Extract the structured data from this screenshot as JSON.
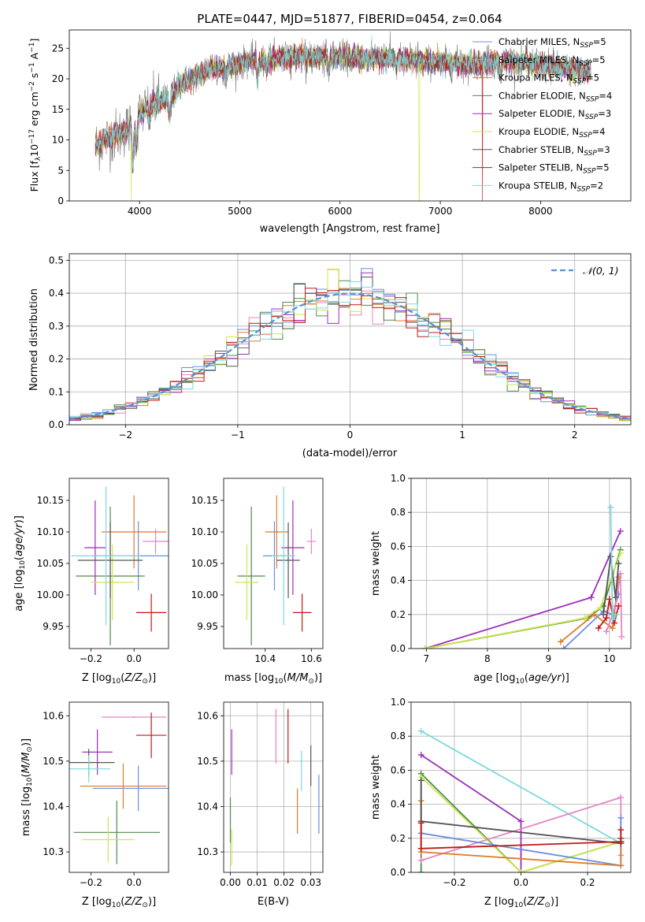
{
  "figure_title": "PLATE=0447, MJD=51877, FIBERID=0454, z=0.064",
  "colors": {
    "Chabrier MILES": "#6b8ee0",
    "Salpeter MILES": "#e685c0",
    "Kroupa MILES": "#e07b2a",
    "Chabrier ELODIE": "#4d8a4d",
    "Salpeter ELODIE": "#9b2fb8",
    "Kroupa ELODIE": "#cce84a",
    "Chabrier STELIB": "#555555",
    "Salpeter STELIB": "#c01818",
    "Kroupa STELIB": "#7fd8dd",
    "gaussian": "#5b8fd8"
  },
  "chart_data": [
    {
      "id": "spectrum",
      "type": "line",
      "xlabel": "wavelength [Angstrom, rest frame]",
      "ylabel": "Flux [f_λ 10^-17 erg cm^-2 s^-1 A^-1]",
      "xlim": [
        3300,
        8900
      ],
      "ylim": [
        0,
        28
      ],
      "xticks": [
        4000,
        5000,
        6000,
        7000,
        8000
      ],
      "yticks": [
        0,
        5,
        10,
        15,
        20,
        25
      ],
      "grid": false,
      "legend": {
        "placement": "right",
        "entries": [
          {
            "model": "Chabrier MILES",
            "label": "Chabrier MILES, N",
            "nssp": "5"
          },
          {
            "model": "Salpeter MILES",
            "label": "Salpeter MILES, N",
            "nssp": "5"
          },
          {
            "model": "Kroupa MILES",
            "label": "Kroupa MILES, N",
            "nssp": "5"
          },
          {
            "model": "Chabrier ELODIE",
            "label": "Chabrier ELODIE, N",
            "nssp": "4"
          },
          {
            "model": "Salpeter ELODIE",
            "label": "Salpeter ELODIE, N",
            "nssp": "3"
          },
          {
            "model": "Kroupa ELODIE",
            "label": "Kroupa ELODIE, N",
            "nssp": "4"
          },
          {
            "model": "Chabrier STELIB",
            "label": "Chabrier STELIB, N",
            "nssp": "3"
          },
          {
            "model": "Salpeter STELIB",
            "label": "Salpeter STELIB, N",
            "nssp": "5"
          },
          {
            "model": "Kroupa STELIB",
            "label": "Kroupa STELIB, N",
            "nssp": "2"
          }
        ]
      },
      "continuum": [
        [
          3560,
          9
        ],
        [
          3650,
          10
        ],
        [
          3800,
          11
        ],
        [
          3900,
          12
        ],
        [
          3950,
          13
        ],
        [
          4050,
          15
        ],
        [
          4150,
          16
        ],
        [
          4300,
          17
        ],
        [
          4400,
          19
        ],
        [
          4500,
          20
        ],
        [
          4700,
          21.5
        ],
        [
          4900,
          22
        ],
        [
          5100,
          23
        ],
        [
          5300,
          23.2
        ],
        [
          5500,
          23.5
        ],
        [
          5700,
          23.5
        ],
        [
          5900,
          23.8
        ],
        [
          6100,
          23.5
        ],
        [
          6300,
          23.3
        ],
        [
          6500,
          23.5
        ],
        [
          6700,
          23
        ],
        [
          6900,
          22.8
        ],
        [
          7100,
          22.5
        ],
        [
          7300,
          22.5
        ],
        [
          7500,
          22.5
        ],
        [
          7700,
          23
        ],
        [
          7900,
          22.5
        ],
        [
          8100,
          22
        ],
        [
          8300,
          21.5
        ],
        [
          8500,
          21
        ]
      ],
      "absorption_features": [
        [
          3934,
          -6
        ],
        [
          3969,
          -4
        ],
        [
          4102,
          -2
        ],
        [
          4300,
          -3
        ],
        [
          4861,
          -2
        ],
        [
          5175,
          -3
        ],
        [
          5270,
          -2
        ],
        [
          5890,
          -2.5
        ],
        [
          6563,
          -1.5
        ],
        [
          7600,
          -2
        ]
      ],
      "dropouts": [
        {
          "model": "Kroupa ELODIE",
          "x": 3915
        },
        {
          "model": "Kroupa ELODIE",
          "x": 6790
        },
        {
          "model": "Salpeter STELIB",
          "x": 7420
        }
      ]
    },
    {
      "id": "residuals",
      "type": "line",
      "xlabel": "(data-model)/error",
      "ylabel": "Normed distribution",
      "xlim": [
        -2.5,
        2.5
      ],
      "ylim": [
        0,
        0.52
      ],
      "xticks": [
        -2,
        -1,
        0,
        1,
        2
      ],
      "yticks": [
        0.0,
        0.1,
        0.2,
        0.3,
        0.4,
        0.5
      ],
      "grid": true,
      "bin_width": 0.1,
      "reference": {
        "name": "𝒩(0, 1)",
        "mean": 0,
        "sigma": 1,
        "style": "dashed"
      },
      "legend_placement": "top-right"
    },
    {
      "id": "age-vs-z",
      "type": "scatter",
      "xlabel": "Z [log10(Z/Z⊙)]",
      "ylabel": "age [log10(age/yr)]",
      "xlim": [
        -0.3,
        0.16
      ],
      "ylim": [
        9.915,
        10.185
      ],
      "xticks": [
        -0.2,
        0.0
      ],
      "yticks": [
        9.95,
        10.0,
        10.05,
        10.1,
        10.15
      ],
      "grid": false,
      "points": [
        {
          "model": "Chabrier MILES",
          "x": 0.02,
          "xerr": 0.21,
          "y": 10.062,
          "yerr": 0.055
        },
        {
          "model": "Salpeter MILES",
          "x": 0.1,
          "xerr": 0.06,
          "y": 10.085,
          "yerr": 0.02
        },
        {
          "model": "Kroupa MILES",
          "x": 0.0,
          "xerr": 0.15,
          "y": 10.1,
          "yerr": 0.058
        },
        {
          "model": "Chabrier ELODIE",
          "x": -0.11,
          "xerr": 0.16,
          "y": 10.03,
          "yerr": 0.11
        },
        {
          "model": "Salpeter ELODIE",
          "x": -0.18,
          "xerr": 0.05,
          "y": 10.075,
          "yerr": 0.075
        },
        {
          "model": "Kroupa ELODIE",
          "x": -0.1,
          "xerr": 0.1,
          "y": 10.02,
          "yerr": 0.06
        },
        {
          "model": "Chabrier STELIB",
          "x": -0.11,
          "xerr": 0.15,
          "y": 10.055,
          "yerr": 0.06
        },
        {
          "model": "Salpeter STELIB",
          "x": 0.08,
          "xerr": 0.07,
          "y": 9.972,
          "yerr": 0.03
        },
        {
          "model": "Kroupa STELIB",
          "x": -0.13,
          "xerr": 0.16,
          "y": 10.062,
          "yerr": 0.11
        }
      ]
    },
    {
      "id": "age-vs-mass",
      "type": "scatter",
      "xlabel": "mass [log10(M/M⊙)]",
      "ylabel": "",
      "xlim": [
        10.22,
        10.65
      ],
      "ylim": [
        9.915,
        10.185
      ],
      "xticks": [
        10.4,
        10.6
      ],
      "yticks": [
        9.95,
        10.0,
        10.05,
        10.1,
        10.15
      ],
      "grid": false,
      "points": [
        {
          "model": "Chabrier MILES",
          "x": 10.44,
          "xerr": 0.05,
          "y": 10.062,
          "yerr": 0.055
        },
        {
          "model": "Salpeter MILES",
          "x": 10.6,
          "xerr": 0.02,
          "y": 10.085,
          "yerr": 0.02
        },
        {
          "model": "Kroupa MILES",
          "x": 10.45,
          "xerr": 0.05,
          "y": 10.1,
          "yerr": 0.058
        },
        {
          "model": "Chabrier ELODIE",
          "x": 10.34,
          "xerr": 0.06,
          "y": 10.03,
          "yerr": 0.11
        },
        {
          "model": "Salpeter ELODIE",
          "x": 10.52,
          "xerr": 0.05,
          "y": 10.075,
          "yerr": 0.075
        },
        {
          "model": "Kroupa ELODIE",
          "x": 10.32,
          "xerr": 0.05,
          "y": 10.02,
          "yerr": 0.06
        },
        {
          "model": "Chabrier STELIB",
          "x": 10.5,
          "xerr": 0.05,
          "y": 10.055,
          "yerr": 0.06
        },
        {
          "model": "Salpeter STELIB",
          "x": 10.56,
          "xerr": 0.04,
          "y": 9.972,
          "yerr": 0.03
        },
        {
          "model": "Kroupa STELIB",
          "x": 10.48,
          "xerr": 0.05,
          "y": 10.062,
          "yerr": 0.11
        }
      ]
    },
    {
      "id": "weight-vs-age",
      "type": "line",
      "xlabel": "age [log10(age/yr)]",
      "ylabel": "mass weight",
      "xlim": [
        6.75,
        10.35
      ],
      "ylim": [
        0,
        1.0
      ],
      "xticks": [
        7,
        8,
        9,
        10
      ],
      "yticks": [
        0.0,
        0.2,
        0.4,
        0.6,
        0.8,
        1.0
      ],
      "grid": true,
      "series": [
        {
          "model": "Salpeter ELODIE",
          "x": [
            6.98,
            9.7,
            10.18
          ],
          "y": [
            0.0,
            0.3,
            0.69
          ]
        },
        {
          "model": "Chabrier ELODIE",
          "x": [
            6.98,
            9.65,
            9.9,
            10.18
          ],
          "y": [
            0.0,
            0.18,
            0.25,
            0.58
          ]
        },
        {
          "model": "Kroupa ELODIE",
          "x": [
            6.98,
            9.6,
            9.85,
            10.18
          ],
          "y": [
            0.0,
            0.18,
            0.24,
            0.56
          ]
        },
        {
          "model": "Kroupa MILES",
          "x": [
            9.2,
            9.75,
            10.05,
            10.15
          ],
          "y": [
            0.04,
            0.2,
            0.12,
            0.42
          ]
        },
        {
          "model": "Chabrier MILES",
          "x": [
            9.25,
            9.9,
            10.05,
            10.15
          ],
          "y": [
            0.0,
            0.22,
            0.2,
            0.32
          ]
        },
        {
          "model": "Salpeter MILES",
          "x": [
            9.95,
            10.1,
            10.18,
            10.2
          ],
          "y": [
            0.1,
            0.25,
            0.44,
            0.07
          ]
        },
        {
          "model": "Chabrier STELIB",
          "x": [
            9.9,
            10.02,
            10.1,
            10.15
          ],
          "y": [
            0.2,
            0.54,
            0.3,
            0.5
          ]
        },
        {
          "model": "Salpeter STELIB",
          "x": [
            9.82,
            9.95,
            10.0,
            10.08,
            10.15
          ],
          "y": [
            0.12,
            0.18,
            0.29,
            0.15,
            0.25
          ]
        },
        {
          "model": "Kroupa STELIB",
          "x": [
            10.02,
            10.05,
            10.1
          ],
          "y": [
            0.83,
            0.17,
            0.2
          ]
        }
      ]
    },
    {
      "id": "mass-vs-z",
      "type": "scatter",
      "xlabel": "Z [log10(Z/Z⊙)]",
      "ylabel": "mass [log10(M/M⊙)]",
      "xlim": [
        -0.3,
        0.16
      ],
      "ylim": [
        10.255,
        10.63
      ],
      "xticks": [
        -0.2,
        0.0
      ],
      "yticks": [
        10.3,
        10.4,
        10.5,
        10.6
      ],
      "grid": false,
      "points": [
        {
          "model": "Chabrier MILES",
          "x": 0.02,
          "xerr": 0.21,
          "y": 10.44,
          "yerr": 0.05
        },
        {
          "model": "Salpeter MILES",
          "x": 0.0,
          "xerr": 0.15,
          "y": 10.597,
          "yerr": 0.002
        },
        {
          "model": "Kroupa MILES",
          "x": -0.05,
          "xerr": 0.2,
          "y": 10.445,
          "yerr": 0.05
        },
        {
          "model": "Chabrier ELODIE",
          "x": -0.08,
          "xerr": 0.2,
          "y": 10.343,
          "yerr": 0.07
        },
        {
          "model": "Salpeter ELODIE",
          "x": -0.17,
          "xerr": 0.07,
          "y": 10.52,
          "yerr": 0.05
        },
        {
          "model": "Kroupa ELODIE",
          "x": -0.12,
          "xerr": 0.12,
          "y": 10.327,
          "yerr": 0.05
        },
        {
          "model": "Chabrier STELIB",
          "x": -0.21,
          "xerr": 0.12,
          "y": 10.497,
          "yerr": 0.03
        },
        {
          "model": "Salpeter STELIB",
          "x": 0.08,
          "xerr": 0.07,
          "y": 10.557,
          "yerr": 0.05
        },
        {
          "model": "Kroupa STELIB",
          "x": -0.21,
          "xerr": 0.1,
          "y": 10.483,
          "yerr": 0.03
        }
      ]
    },
    {
      "id": "mass-vs-ebv",
      "type": "scatter",
      "xlabel": "E(B-V)",
      "ylabel": "",
      "xlim": [
        -0.0025,
        0.0345
      ],
      "ylim": [
        10.255,
        10.63
      ],
      "xticks": [
        0.0,
        0.01,
        0.02,
        0.03
      ],
      "xticklabels": [
        "0.00",
        "0.01",
        "0.02",
        "0.03"
      ],
      "yticks": [
        10.3,
        10.4,
        10.5,
        10.6
      ],
      "grid": true,
      "points": [
        {
          "model": "Chabrier MILES",
          "x": 0.033,
          "xerr": 0,
          "y": 10.405,
          "yerr": 0.065
        },
        {
          "model": "Salpeter MILES",
          "x": 0.017,
          "xerr": 0,
          "y": 10.555,
          "yerr": 0.06
        },
        {
          "model": "Kroupa MILES",
          "x": 0.025,
          "xerr": 0,
          "y": 10.39,
          "yerr": 0.05
        },
        {
          "model": "Chabrier ELODIE",
          "x": 0.0,
          "xerr": 0,
          "y": 10.37,
          "yerr": 0.05
        },
        {
          "model": "Salpeter ELODIE",
          "x": 0.0005,
          "xerr": 0,
          "y": 10.52,
          "yerr": 0.05
        },
        {
          "model": "Kroupa ELODIE",
          "x": 0.0005,
          "xerr": 0,
          "y": 10.31,
          "yerr": 0.04
        },
        {
          "model": "Chabrier STELIB",
          "x": 0.03,
          "xerr": 0,
          "y": 10.49,
          "yerr": 0.045
        },
        {
          "model": "Salpeter STELIB",
          "x": 0.0215,
          "xerr": 0,
          "y": 10.555,
          "yerr": 0.06
        },
        {
          "model": "Kroupa STELIB",
          "x": 0.0265,
          "xerr": 0,
          "y": 10.478,
          "yerr": 0.045
        }
      ]
    },
    {
      "id": "weight-vs-z",
      "type": "line",
      "xlabel": "Z [log10(Z/Z⊙)]",
      "ylabel": "mass weight",
      "xlim": [
        -0.33,
        0.33
      ],
      "ylim": [
        0,
        1.0
      ],
      "xticks": [
        -0.2,
        0.0,
        0.2
      ],
      "yticks": [
        0.0,
        0.2,
        0.4,
        0.6,
        0.8,
        1.0
      ],
      "grid": true,
      "series": [
        {
          "model": "Kroupa STELIB",
          "x": [
            -0.3,
            0.3
          ],
          "y": [
            0.83,
            0.17
          ]
        },
        {
          "model": "Salpeter ELODIE",
          "x": [
            -0.3,
            0.0,
            0.0
          ],
          "y": [
            0.69,
            0.3,
            0.0
          ]
        },
        {
          "model": "Chabrier ELODIE",
          "x": [
            -0.3,
            -0.3,
            0.0,
            0.3
          ],
          "y": [
            0.0,
            0.58,
            0.0,
            0.18
          ]
        },
        {
          "model": "Kroupa ELODIE",
          "x": [
            -0.3,
            0.0,
            0.3
          ],
          "y": [
            0.56,
            0.0,
            0.18
          ]
        },
        {
          "model": "Salpeter MILES",
          "x": [
            -0.3,
            0.3,
            0.3
          ],
          "y": [
            0.07,
            0.44,
            0.1
          ]
        },
        {
          "model": "Chabrier MILES",
          "x": [
            -0.3,
            0.3,
            0.3
          ],
          "y": [
            0.23,
            0.04,
            0.32
          ]
        },
        {
          "model": "Kroupa MILES",
          "x": [
            -0.3,
            -0.3,
            0.3,
            0.3
          ],
          "y": [
            0.42,
            0.12,
            0.04,
            0.2
          ]
        },
        {
          "model": "Chabrier STELIB",
          "x": [
            -0.3,
            -0.3,
            0.3,
            0.3
          ],
          "y": [
            0.54,
            0.3,
            0.17,
            0.2
          ]
        },
        {
          "model": "Salpeter STELIB",
          "x": [
            -0.3,
            -0.3,
            0.3,
            0.3
          ],
          "y": [
            0.29,
            0.14,
            0.18,
            0.25
          ]
        }
      ]
    }
  ]
}
